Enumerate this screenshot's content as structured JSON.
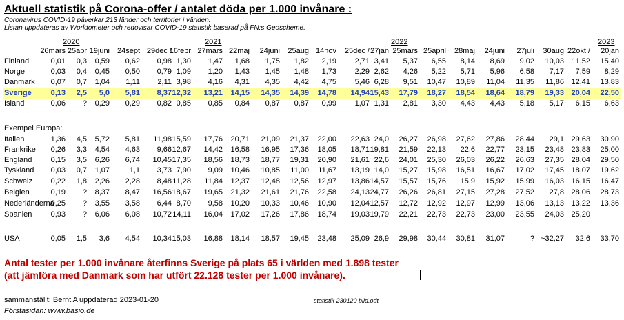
{
  "title": "Aktuell statistik på Corona-offer / antalet döda per 1.000 invånare :",
  "subtitles": [
    "Coronavirus COVID-19 påverkar 213 länder och territorier i världen.",
    "Listan uppdateras av Worldometer och redovisar COVID-19 statistik baserad på FN:s Geoscheme."
  ],
  "years": [
    "2020",
    "2021",
    "2022",
    "2023"
  ],
  "columns": [
    "26mars",
    "25apr",
    "19juni",
    "24sept",
    "29dec /",
    "16febr",
    "27mars",
    "22maj",
    "24juni",
    "25aug",
    "14nov",
    "25dec /",
    "27jan",
    "25mars",
    "25april",
    "28maj",
    "24juni",
    "27juli",
    "30aug",
    "22okt /",
    "20jan"
  ],
  "rows_nordic": [
    {
      "label": "Finland",
      "values": [
        "0,01",
        "0,3",
        "0,59",
        "0,62",
        "0,98",
        "1,30",
        "1,47",
        "1,68",
        "1,75",
        "1,82",
        "2,19",
        "2,71",
        "3,41",
        "5,37",
        "6,55",
        "8,14",
        "8,69",
        "9,02",
        "10,03",
        "11,52",
        "15,40"
      ]
    },
    {
      "label": "Norge",
      "values": [
        "0,03",
        "0,4",
        "0,45",
        "0,50",
        "0,79",
        "1,09",
        "1,20",
        "1,43",
        "1,45",
        "1,48",
        "1,73",
        "2,29",
        "2,62",
        "4,26",
        "5,22",
        "5,71",
        "5,96",
        "6,58",
        "7,17",
        "7,59",
        "8,29"
      ]
    },
    {
      "label": "Danmark",
      "values": [
        "0,07",
        "0,7",
        "1,04",
        "1,11",
        "2,11",
        "3,98",
        "4,16",
        "4,31",
        "4,35",
        "4,42",
        "4,75",
        "5,46",
        "6,28",
        "9,51",
        "10,47",
        "10,89",
        "11,04",
        "11,35",
        "11,86",
        "12,41",
        "13,83"
      ]
    },
    {
      "label": "Sverige",
      "values": [
        "0,13",
        "2,5",
        "5,0",
        "5,81",
        "8,37",
        "12,32",
        "13,21",
        "14,15",
        "14,35",
        "14,39",
        "14,78",
        "14,94",
        "15,43",
        "17,79",
        "18,27",
        "18,54",
        "18,64",
        "18,79",
        "19,33",
        "20,04",
        "22,50"
      ]
    },
    {
      "label": "Island",
      "values": [
        "0,06",
        "?",
        "0,29",
        "0,29",
        "0,82",
        "0,85",
        "0,85",
        "0,84",
        "0,87",
        "0,87",
        "0,99",
        "1,07",
        "1,31",
        "2,81",
        "3,30",
        "4,43",
        "4,43",
        "5,18",
        "5,17",
        "6,15",
        "6,63"
      ]
    }
  ],
  "europe_label": "Exempel Europa:",
  "rows_europe": [
    {
      "label": "Italien",
      "values": [
        "1,36",
        "4,5",
        "5,72",
        "5,81",
        "11,98",
        "15,59",
        "17,76",
        "20,71",
        "21,09",
        "21,37",
        "22,00",
        "22,63",
        "24,0",
        "26,27",
        "26,98",
        "27,62",
        "27,86",
        "28,44",
        "29,1",
        "29,63",
        "30,90"
      ]
    },
    {
      "label": "Frankrike",
      "values": [
        "0,26",
        "3,3",
        "4,54",
        "4,63",
        "9,66",
        "12,67",
        "14,42",
        "16,58",
        "16,95",
        "17,36",
        "18,05",
        "18,71",
        "19,81",
        "21,59",
        "22,13",
        "22,6",
        "22,77",
        "23,15",
        "23,48",
        "23,83",
        "25,00"
      ]
    },
    {
      "label": "England",
      "values": [
        "0,15",
        "3,5",
        "6,26",
        "6,74",
        "10,45",
        "17,35",
        "18,56",
        "18,73",
        "18,77",
        "19,31",
        "20,90",
        "21,61",
        "22,6",
        "24,01",
        "25,30",
        "26,03",
        "26,22",
        "26,63",
        "27,35",
        "28,04",
        "29,50"
      ]
    },
    {
      "label": "Tyskland",
      "values": [
        "0,03",
        "0,7",
        "1,07",
        "1,1",
        "3,73",
        "7,90",
        "9,09",
        "10,46",
        "10,85",
        "11,00",
        "11,67",
        "13,19",
        "14,0",
        "15,27",
        "15,98",
        "16,51",
        "16,67",
        "17,02",
        "17,45",
        "18,07",
        "19,62"
      ]
    },
    {
      "label": "Schweiz",
      "values": [
        "0,22",
        "1,8",
        "2,26",
        "2,28",
        "8,48",
        "11,28",
        "11,84",
        "12,37",
        "12,48",
        "12,56",
        "12,97",
        "13,86",
        "14,57",
        "15,57",
        "15,76",
        "15,9",
        "15,92",
        "15,99",
        "16,03",
        "16,15",
        "16,47"
      ]
    },
    {
      "label": "Belgien",
      "values": [
        "0,19",
        "?",
        "8,37",
        "8,47",
        "16,56",
        "18,67",
        "19,65",
        "21,32",
        "21,61",
        "21,76",
        "22,58",
        "24,13",
        "24,77",
        "26,26",
        "26,81",
        "27,15",
        "27,28",
        "27,52",
        "27,8",
        "28,06",
        "28,73"
      ]
    },
    {
      "label": "Nederländerna",
      "values": [
        "0,25",
        "?",
        "3,55",
        "3,58",
        "6,44",
        "8,70",
        "9,58",
        "10,20",
        "10,33",
        "10,46",
        "10,90",
        "12,04",
        "12,57",
        "12,72",
        "12,92",
        "12,97",
        "12,99",
        "13,06",
        "13,13",
        "13,22",
        "13,36"
      ]
    },
    {
      "label": "Spanien",
      "values": [
        "0,93",
        "?",
        "6,06",
        "6,08",
        "10,72",
        "14,11",
        "16,04",
        "17,02",
        "17,26",
        "17,86",
        "18,74",
        "19,03",
        "19,79",
        "22,21",
        "22,73",
        "22,73",
        "23,00",
        "23,55",
        "24,03",
        "25,20",
        ""
      ]
    }
  ],
  "row_usa": {
    "label": "USA",
    "values": [
      "0,05",
      "1,5",
      "3,6",
      "4,54",
      "10,34",
      "15,03",
      "16,88",
      "18,14",
      "18,57",
      "19,45",
      "23,48",
      "25,09",
      "26,9",
      "29,98",
      "30,44",
      "30,81",
      "31,07",
      "?",
      "~32,27",
      "32,6",
      "33,70"
    ]
  },
  "red_lines": [
    "Antal tester per 1.000 invånare återfinns Sverige på plats 65 i världen med 1.898 tester",
    "(att jämföra med Danmark som har utfört 22.128 tester per 1.000 invånare)."
  ],
  "footer": {
    "compiled": "sammanställt: Bernt A",
    "updated": "uppdaterad 2023-01-20",
    "fileinfo": "statistik  230120 bild.odt",
    "home": "Förstasidan: www.basio.de"
  },
  "colors": {
    "highlight": "#ffff99",
    "sverige_text": "#1f3fbf",
    "red_text": "#c00000"
  }
}
